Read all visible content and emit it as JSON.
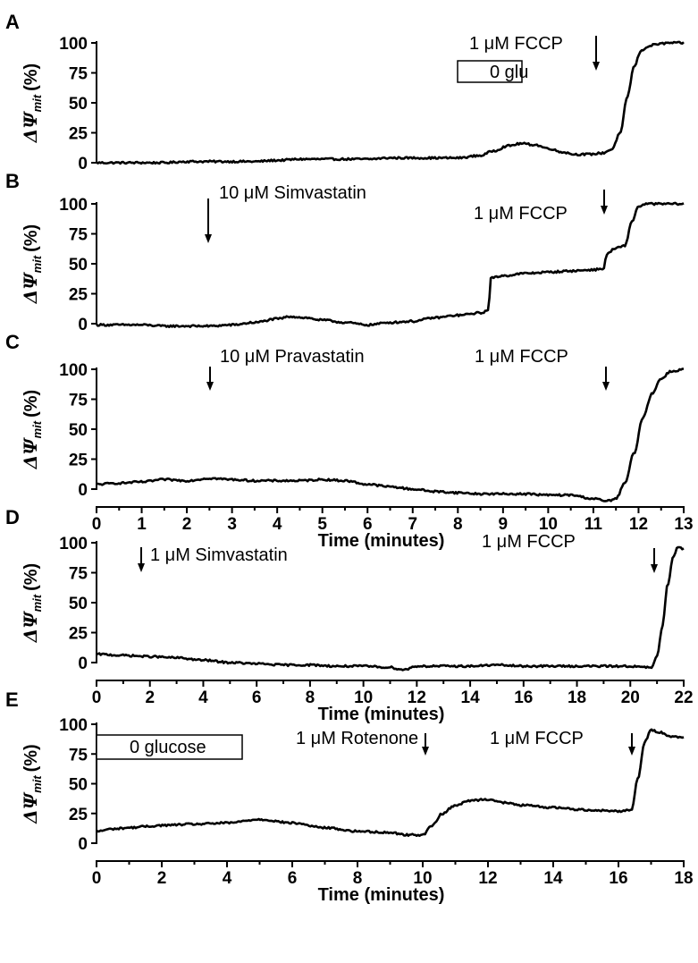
{
  "chart_data": [
    {
      "panel": "A",
      "type": "line",
      "ylabel": {
        "delta": "Δ",
        "psi": "Ψ",
        "sub": "mit",
        "unit": "(%)"
      },
      "xlabel": "",
      "xlim": [
        0,
        13
      ],
      "ylim": [
        0,
        100
      ],
      "yticks": [
        "0",
        "25",
        "50",
        "75",
        "100"
      ],
      "xticks": [],
      "grid": false,
      "series": [
        {
          "x": [
            0,
            0.5,
            1,
            1.5,
            2,
            2.5,
            3,
            3.5,
            4,
            4.5,
            5,
            5.5,
            6,
            6.5,
            7,
            7.5,
            8,
            8.5,
            8.8,
            9.1,
            9.4,
            9.7,
            10,
            10.3,
            10.6,
            10.9,
            11.2,
            11.4,
            11.6,
            11.75,
            11.9,
            12.05,
            12.2,
            12.4,
            12.7,
            13
          ],
          "y": [
            0,
            0,
            0,
            0,
            1,
            1,
            1,
            1,
            2,
            3,
            3,
            3,
            3,
            4,
            4,
            4,
            4,
            6,
            10,
            14,
            16,
            15,
            12,
            9,
            7,
            7,
            8,
            11,
            25,
            55,
            80,
            93,
            97,
            99,
            100,
            100
          ]
        }
      ],
      "annotations": [
        {
          "text": "1 μM FCCP",
          "arrow_x": 11.0
        },
        {
          "text": "0 glu",
          "boxed": true
        }
      ]
    },
    {
      "panel": "B",
      "type": "line",
      "ylabel": {
        "delta": "Δ",
        "psi": "Ψ",
        "sub": "mit",
        "unit": "(%)"
      },
      "xlabel": "",
      "xlim": [
        0,
        13
      ],
      "ylim": [
        0,
        100
      ],
      "yticks": [
        "0",
        "25",
        "50",
        "75",
        "100"
      ],
      "xticks": [],
      "grid": false,
      "series": [
        {
          "x": [
            0,
            0.5,
            1,
            1.5,
            2,
            2.5,
            3,
            3.5,
            4,
            4.3,
            4.6,
            5,
            5.5,
            6,
            6.5,
            7,
            7.5,
            8,
            8.5,
            8.68,
            8.72,
            9,
            9.5,
            10,
            10.5,
            11,
            11.25,
            11.28,
            11.5,
            11.7,
            11.85,
            12,
            12.2,
            12.5,
            13
          ],
          "y": [
            -1,
            -1,
            -1,
            -2,
            -2,
            -2,
            -1,
            1,
            4,
            6,
            5,
            3,
            1,
            -1,
            1,
            2,
            5,
            7,
            9,
            11,
            38,
            40,
            42,
            43,
            44,
            45,
            46,
            58,
            63,
            65,
            85,
            98,
            100,
            100,
            100
          ]
        }
      ],
      "annotations": [
        {
          "text": "10 μM Simvastatin",
          "arrow_x": 2.5
        },
        {
          "text": "1 μM FCCP",
          "arrow_x": 11.3
        }
      ]
    },
    {
      "panel": "C",
      "type": "line",
      "ylabel": {
        "delta": "Δ",
        "psi": "Ψ",
        "sub": "mit",
        "unit": "(%)"
      },
      "xlabel": "Time (minutes)",
      "xlim": [
        0,
        13
      ],
      "ylim": [
        0,
        100
      ],
      "yticks": [
        "0",
        "25",
        "50",
        "75",
        "100"
      ],
      "xticks": [
        "0",
        "1",
        "2",
        "3",
        "4",
        "5",
        "6",
        "7",
        "8",
        "9",
        "10",
        "11",
        "12",
        "13"
      ],
      "grid": false,
      "series": [
        {
          "x": [
            0,
            0.5,
            1,
            1.5,
            2,
            2.5,
            3,
            3.5,
            4,
            4.5,
            5,
            5.5,
            6,
            6.5,
            7,
            7.5,
            8,
            8.5,
            9,
            9.5,
            10,
            10.5,
            11,
            11.3,
            11.5,
            11.7,
            11.9,
            12.1,
            12.3,
            12.5,
            12.7,
            13
          ],
          "y": [
            4,
            5,
            6,
            8,
            7,
            9,
            8,
            7,
            7,
            7,
            8,
            7,
            4,
            2,
            0,
            -2,
            -3,
            -4,
            -4,
            -4,
            -5,
            -5,
            -8,
            -10,
            -8,
            5,
            30,
            60,
            80,
            92,
            98,
            100
          ]
        }
      ],
      "annotations": [
        {
          "text": "10 μM Pravastatin",
          "arrow_x": 2.5
        },
        {
          "text": "1 μM FCCP",
          "arrow_x": 11.3
        }
      ]
    },
    {
      "panel": "D",
      "type": "line",
      "ylabel": {
        "delta": "Δ",
        "psi": "Ψ",
        "sub": "mit",
        "unit": "(%)"
      },
      "xlabel": "Time (minutes)",
      "xlim": [
        0,
        22
      ],
      "ylim": [
        0,
        100
      ],
      "yticks": [
        "0",
        "25",
        "50",
        "75",
        "100"
      ],
      "xticks": [
        "0",
        "2",
        "4",
        "6",
        "8",
        "10",
        "12",
        "14",
        "16",
        "18",
        "20",
        "22"
      ],
      "grid": false,
      "series": [
        {
          "x": [
            0,
            1,
            2,
            3,
            4,
            5,
            6,
            7,
            8,
            9,
            10,
            11,
            11.5,
            12,
            13,
            14,
            15,
            16,
            17,
            18,
            19,
            20,
            20.5,
            20.8,
            21,
            21.2,
            21.4,
            21.6,
            21.8,
            22
          ],
          "y": [
            7,
            6,
            5,
            4,
            2,
            0,
            -1,
            -2,
            -2,
            -3,
            -3,
            -4,
            -6,
            -3,
            -3,
            -3,
            -2,
            -3,
            -3,
            -3,
            -3,
            -3,
            -4,
            -4,
            5,
            30,
            65,
            88,
            97,
            95
          ]
        }
      ],
      "annotations": [
        {
          "text": "1 μM Simvastatin",
          "arrow_x": 1.7
        },
        {
          "text": "1 μM FCCP",
          "arrow_x": 20.9
        }
      ]
    },
    {
      "panel": "E",
      "type": "line",
      "ylabel": {
        "delta": "Δ",
        "psi": "Ψ",
        "sub": "mit",
        "unit": "(%)"
      },
      "xlabel": "Time (minutes)",
      "xlim": [
        0,
        18
      ],
      "ylim": [
        0,
        100
      ],
      "yticks": [
        "0",
        "25",
        "50",
        "75",
        "100"
      ],
      "xticks": [
        "0",
        "2",
        "4",
        "6",
        "8",
        "10",
        "12",
        "14",
        "16",
        "18"
      ],
      "grid": false,
      "series": [
        {
          "x": [
            0,
            0.5,
            1,
            1.5,
            2,
            3,
            4,
            5,
            6,
            7,
            8,
            9,
            9.5,
            10,
            10.3,
            10.6,
            11,
            11.5,
            12,
            12.5,
            13,
            14,
            15,
            16,
            16.4,
            16.6,
            16.8,
            17,
            17.3,
            17.6,
            18
          ],
          "y": [
            10,
            12,
            13,
            14,
            15,
            16,
            17,
            20,
            17,
            13,
            10,
            9,
            7,
            7,
            15,
            25,
            32,
            36,
            37,
            34,
            32,
            30,
            28,
            27,
            28,
            55,
            85,
            95,
            93,
            90,
            89
          ]
        }
      ],
      "annotations": [
        {
          "text": "1 μM Rotenone",
          "arrow_x": 10.1
        },
        {
          "text": "1 μM FCCP",
          "arrow_x": 16.4
        },
        {
          "text": "0 glucose",
          "boxed": true
        }
      ]
    }
  ]
}
